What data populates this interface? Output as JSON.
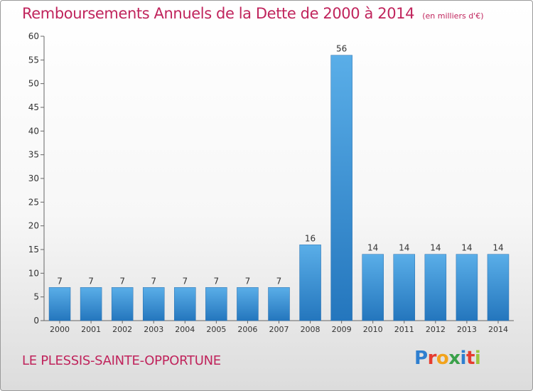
{
  "title": "Remboursements Annuels de la Dette de 2000 à 2014",
  "unit_note": "(en milliers d'€)",
  "commune": "LE PLESSIS-SAINTE-OPPORTUNE",
  "brand": {
    "letters": [
      "P",
      "r",
      "o",
      "x",
      "i",
      "t",
      "i"
    ],
    "colors": [
      "#2e7fd0",
      "#e63c2f",
      "#f2a31c",
      "#3aa14a",
      "#2e7fd0",
      "#e63c2f",
      "#9bc53d"
    ]
  },
  "colors": {
    "accent": "#c0245c",
    "bar_top": "#5aaee8",
    "bar_bottom": "#2476bd"
  },
  "chart_data": {
    "type": "bar",
    "categories": [
      "2000",
      "2001",
      "2002",
      "2003",
      "2004",
      "2005",
      "2006",
      "2007",
      "2008",
      "2009",
      "2010",
      "2011",
      "2012",
      "2013",
      "2014"
    ],
    "values": [
      7,
      7,
      7,
      7,
      7,
      7,
      7,
      7,
      16,
      56,
      14,
      14,
      14,
      14,
      14
    ],
    "data_labels": [
      "7",
      "7",
      "7",
      "7",
      "7",
      "7",
      "7",
      "7",
      "16",
      "56",
      "14",
      "14",
      "14",
      "14",
      "14"
    ],
    "yticks": [
      0,
      5,
      10,
      15,
      20,
      25,
      30,
      35,
      40,
      45,
      50,
      55,
      60
    ],
    "ylim": [
      0,
      60
    ],
    "grid": false
  }
}
